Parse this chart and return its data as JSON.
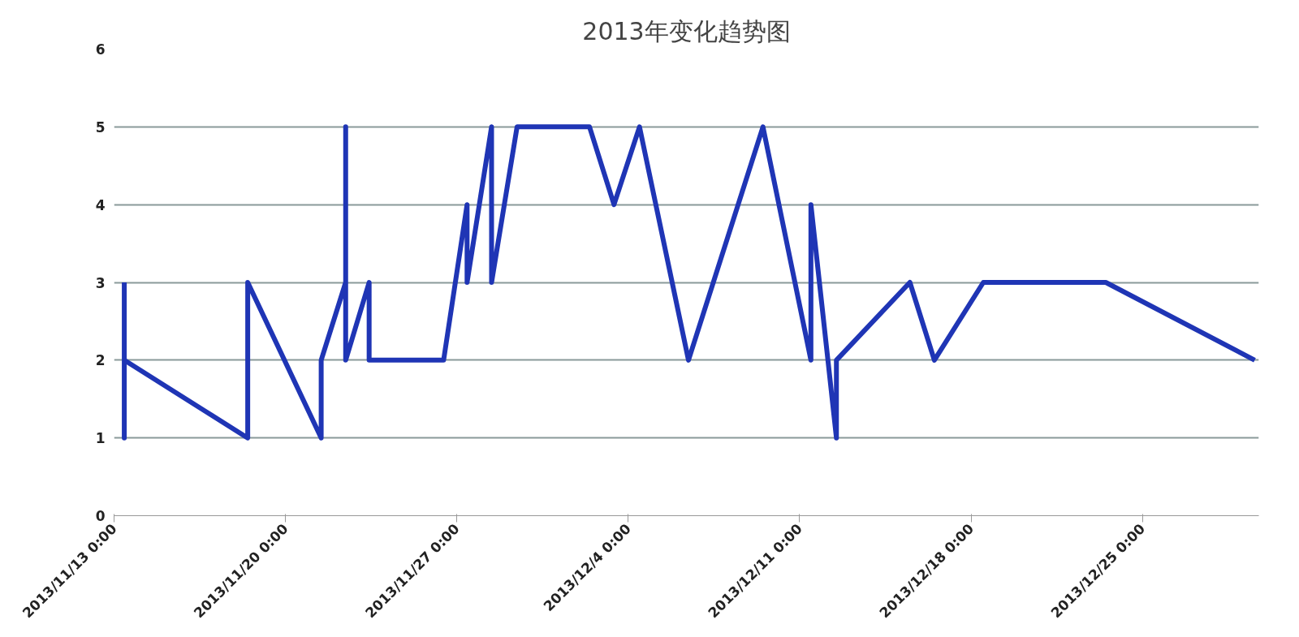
{
  "chart_data": {
    "type": "line",
    "title": "2013年变化趋势图",
    "x": [
      "2013-11-13T10:00",
      "2013-11-13T10:00",
      "2013-11-13T10:00",
      "2013-11-18T11:00",
      "2013-11-18T11:00",
      "2013-11-21T11:00",
      "2013-11-21T11:00",
      "2013-11-22T11:00",
      "2013-11-22T11:00",
      "2013-11-22T11:00",
      "2013-11-23T10:00",
      "2013-11-23T10:00",
      "2013-11-24T10:00",
      "2013-11-26T11:00",
      "2013-11-27T10:00",
      "2013-11-27T10:00",
      "2013-11-28T10:00",
      "2013-11-28T10:00",
      "2013-11-29T11:00",
      "2013-12-02T10:00",
      "2013-12-03T10:00",
      "2013-12-04T11:00",
      "2013-12-06T11:00",
      "2013-12-09T12:00",
      "2013-12-11T11:00",
      "2013-12-11T11:00",
      "2013-12-12T12:00",
      "2013-12-12T12:00",
      "2013-12-15T12:00",
      "2013-12-16T12:00",
      "2013-12-18T12:00",
      "2013-12-23T12:00",
      "2013-12-29T14:00"
    ],
    "series": [
      {
        "color": "#1f35b5",
        "values": [
          3,
          1,
          2,
          1,
          3,
          1,
          2,
          3,
          5,
          2,
          3,
          2,
          2,
          2,
          4,
          3,
          5,
          3,
          5,
          5,
          4,
          5,
          2,
          5,
          2,
          4,
          1,
          2,
          3,
          2,
          3,
          3,
          2
        ]
      }
    ],
    "xlim": [
      "2013-11-13",
      "2013-12-29T18:00"
    ],
    "xticks": [
      {
        "value": "2013-11-13",
        "label": "2013/11/13 0:00"
      },
      {
        "value": "2013-11-20",
        "label": "2013/11/20 0:00"
      },
      {
        "value": "2013-11-27",
        "label": "2013/11/27 0:00"
      },
      {
        "value": "2013-12-04",
        "label": "2013/12/4 0:00"
      },
      {
        "value": "2013-12-11",
        "label": "2013/12/11 0:00"
      },
      {
        "value": "2013-12-18",
        "label": "2013/12/18 0:00"
      },
      {
        "value": "2013-12-25",
        "label": "2013/12/25 0:00"
      }
    ],
    "ylim": [
      0,
      6
    ],
    "yticks": [
      0,
      1,
      2,
      3,
      4,
      5,
      6
    ],
    "grid": "y",
    "marker": "none",
    "line_style": "solid"
  }
}
